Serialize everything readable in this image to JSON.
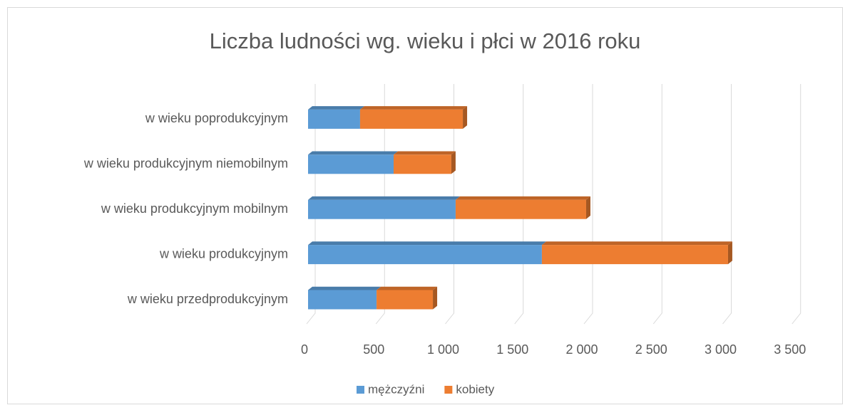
{
  "chart_data": {
    "type": "bar",
    "orientation": "horizontal",
    "stacked": true,
    "title": "Liczba ludności wg. wieku i płci w 2016 roku",
    "categories": [
      "w wieku przedprodukcyjnym",
      "w wieku produkcyjnym",
      "w wieku produkcyjnym mobilnym",
      "w wieku produkcyjnym niemobilnym",
      "w wieku poprodukcyjnym"
    ],
    "series": [
      {
        "name": "mężczyźni",
        "color": "#5b9bd5",
        "values": [
          494,
          1686,
          1064,
          617,
          375
        ]
      },
      {
        "name": "kobiety",
        "color": "#ed7d31",
        "values": [
          406,
          1342,
          941,
          416,
          741
        ]
      }
    ],
    "xlim": [
      0,
      3500
    ],
    "xticks": [
      0,
      500,
      {
        "value": 1000,
        "label": "1 000"
      },
      {
        "value": 1500,
        "label": "1 500"
      },
      {
        "value": 2000,
        "label": "2 000"
      },
      {
        "value": 2500,
        "label": "2 500"
      },
      {
        "value": 3000,
        "label": "3 000"
      },
      {
        "value": 3500,
        "label": "3 500"
      }
    ],
    "grid": true,
    "legend": "bottom"
  }
}
